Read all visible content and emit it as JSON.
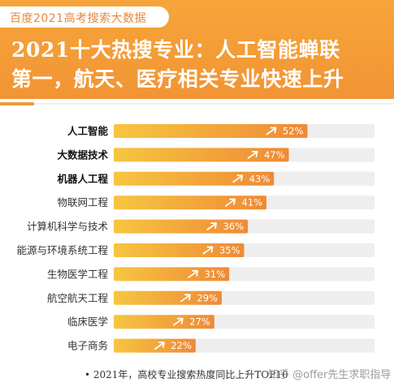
{
  "header": {
    "badge": "百度2021高考搜索大数据",
    "headline_line1": "2021十大热搜专业：人工智能蝉联",
    "headline_line2": "第一，航天、医疗相关专业快速上升"
  },
  "chart_data": {
    "type": "bar",
    "orientation": "horizontal",
    "categories": [
      "人工智能",
      "大数据技术",
      "机器人工程",
      "物联网工程",
      "计算机科学与技术",
      "能源与环境系统工程",
      "生物医学工程",
      "航空航天工程",
      "临床医学",
      "电子商务"
    ],
    "values": [
      52,
      47,
      43,
      41,
      36,
      35,
      31,
      29,
      27,
      22
    ],
    "value_labels": [
      "52%",
      "47%",
      "43%",
      "41%",
      "36%",
      "35%",
      "31%",
      "29%",
      "27%",
      "22%"
    ],
    "bold_categories": [
      "人工智能",
      "大数据技术",
      "机器人工程"
    ],
    "xlim": [
      0,
      70
    ],
    "colors": {
      "bar_gradient_start": "#f6c640",
      "bar_gradient_end": "#ef8a36",
      "track": "#eeeeee",
      "accent": "#f29434"
    }
  },
  "footer": {
    "caption": "• 2021年，高校专业搜索热度同比上升TOP10",
    "watermark": "知乎 @offer先生求职指导"
  }
}
